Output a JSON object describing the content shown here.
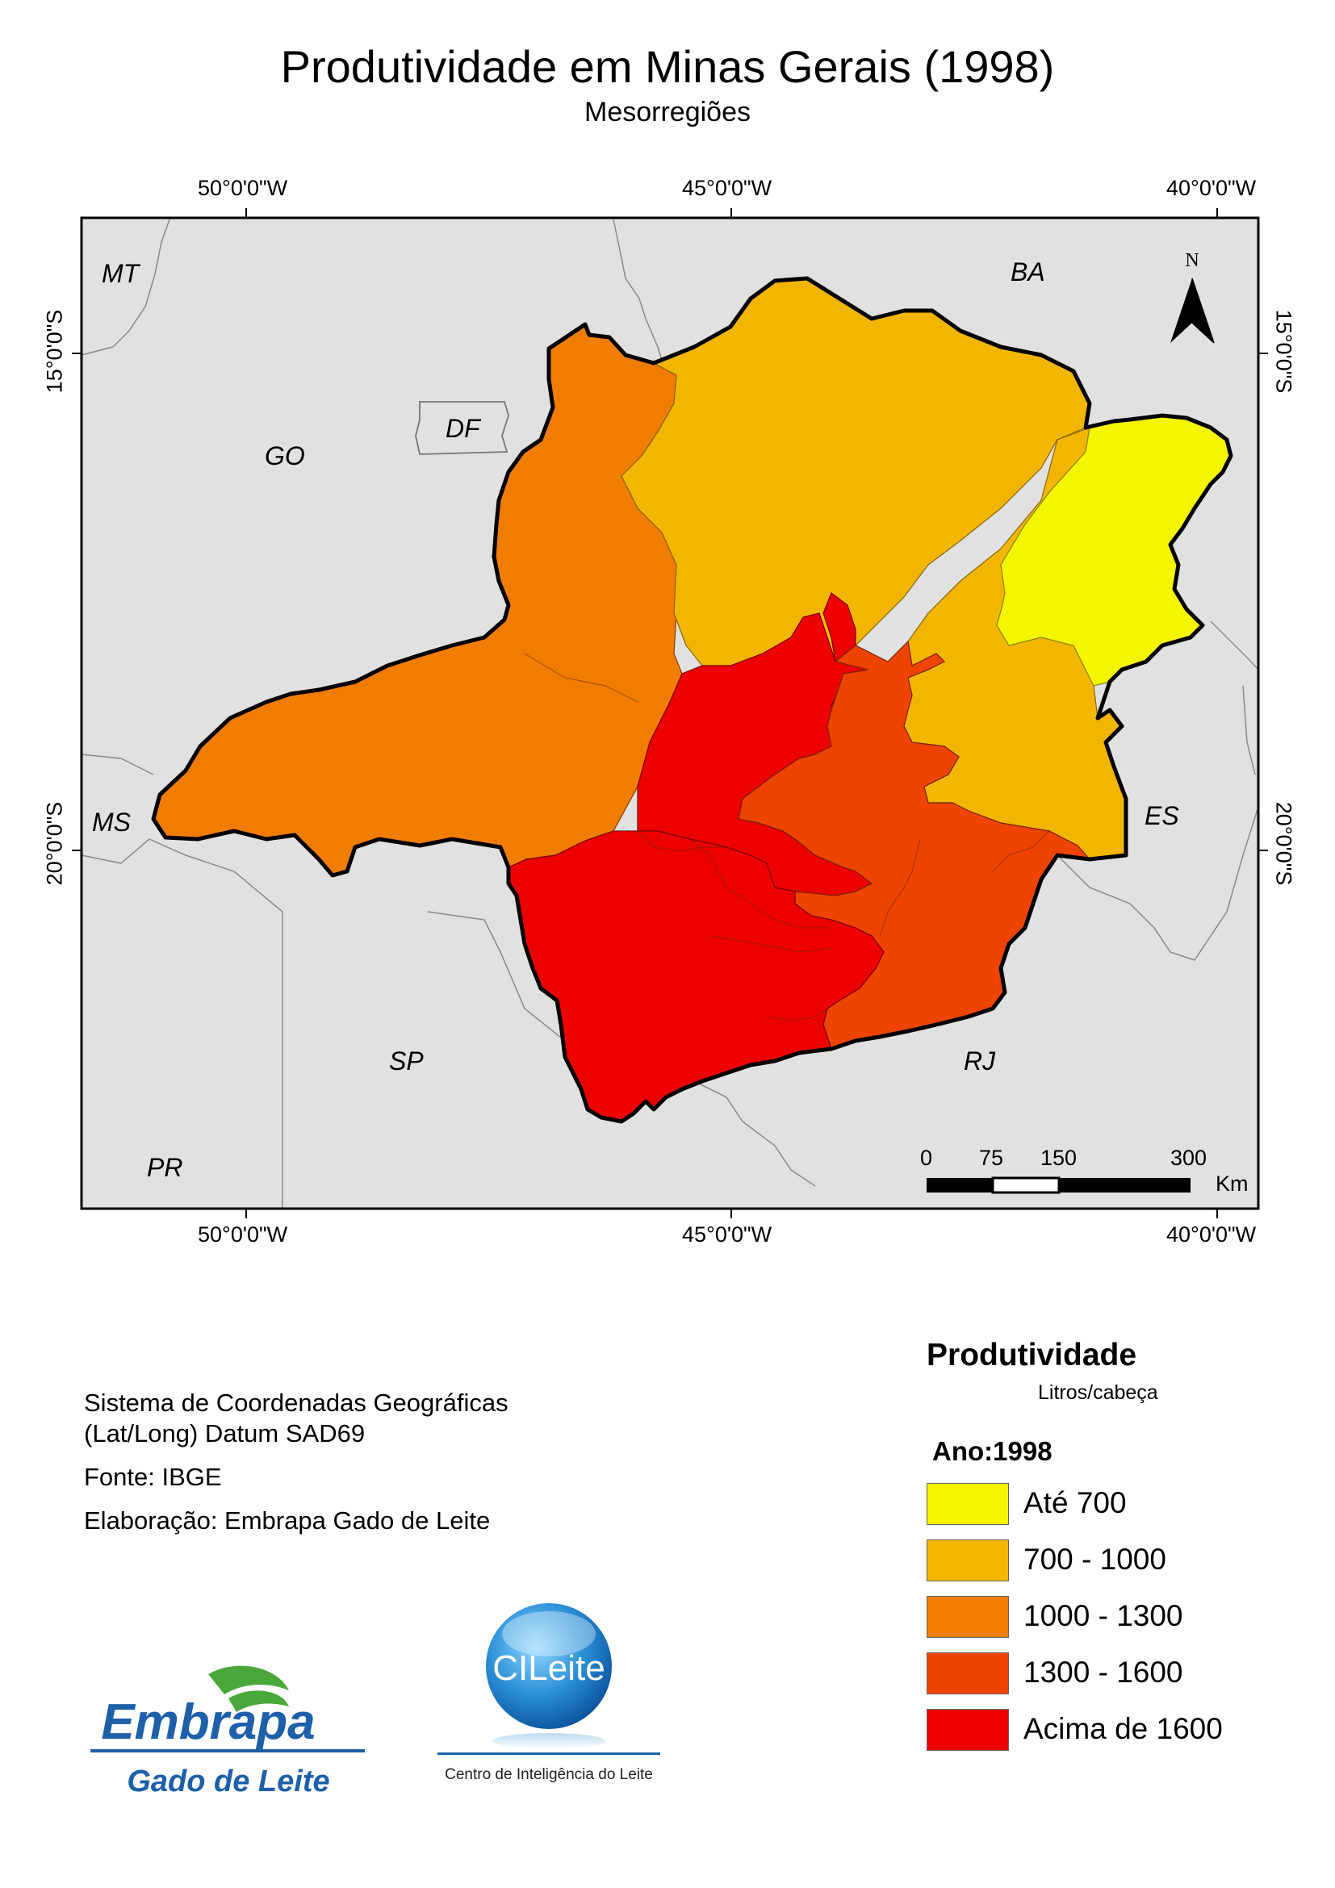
{
  "title": "Produtividade em Minas Gerais (1998)",
  "subtitle": "Mesorregiões",
  "coordinates": {
    "top": [
      "50°0'0\"W",
      "45°0'0\"W",
      "40°0'0\"W"
    ],
    "bottom": [
      "50°0'0\"W",
      "45°0'0\"W",
      "40°0'0\"W"
    ],
    "left": [
      "15°0'0\"S",
      "20°0'0\"S"
    ],
    "right": [
      "15°0'0\"S",
      "20°0'0\"S"
    ]
  },
  "states": [
    "MT",
    "BA",
    "DF",
    "GO",
    "MS",
    "ES",
    "SP",
    "RJ",
    "PR"
  ],
  "north_arrow": {
    "label": "N"
  },
  "scale_bar": {
    "ticks": [
      "0",
      "75",
      "150",
      "300"
    ],
    "unit": "Km"
  },
  "info": {
    "coord_system_line1": "Sistema de Coordenadas Geográficas",
    "coord_system_line2": "(Lat/Long) Datum SAD69",
    "source": "Fonte: IBGE",
    "elaboration": "Elaboração: Embrapa Gado de Leite"
  },
  "legend": {
    "title": "Produtividade",
    "unit": "Litros/cabeça",
    "year": "Ano:1998",
    "classes": [
      {
        "label": "Até 700",
        "color": "#F5F500"
      },
      {
        "label": "700 - 1000",
        "color": "#F2B600"
      },
      {
        "label": "1000 - 1300",
        "color": "#F07D00"
      },
      {
        "label": "1300 - 1600",
        "color": "#EE4400"
      },
      {
        "label": "Acima de 1600",
        "color": "#EC0000"
      }
    ]
  },
  "logos": {
    "embrapa_name": "Embrapa",
    "embrapa_sub": "Gado de Leite",
    "cileite_name": "CILeite",
    "cileite_sub": "Centro de Inteligência do Leite"
  }
}
